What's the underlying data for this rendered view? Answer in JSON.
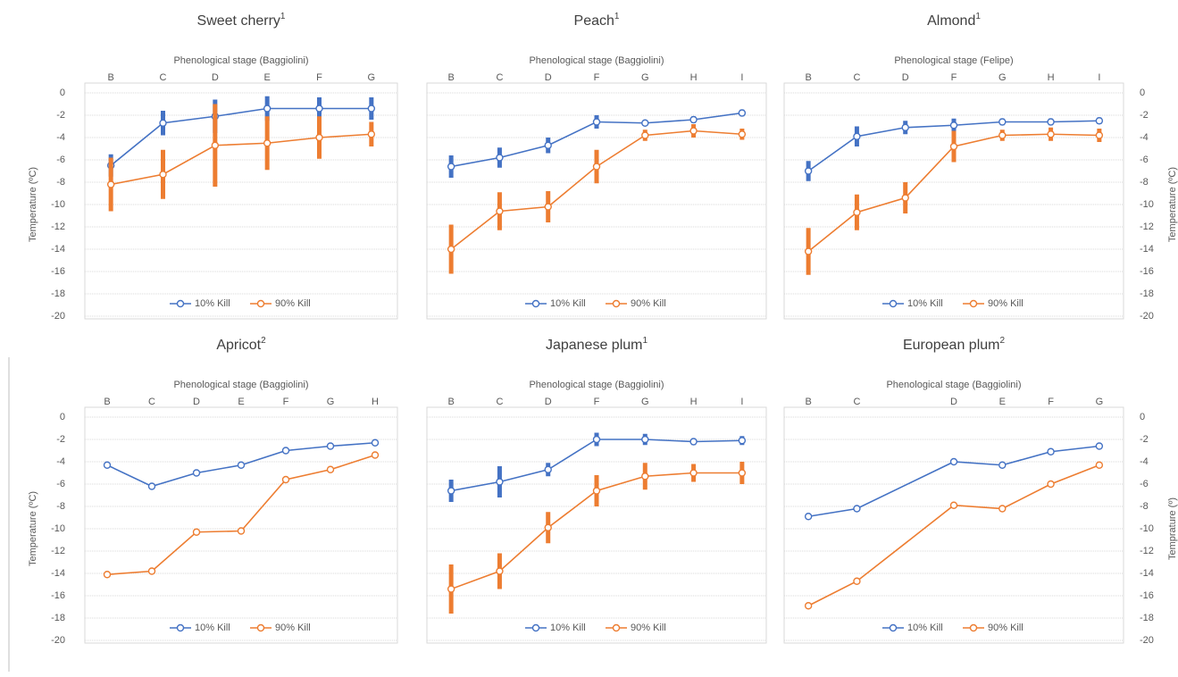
{
  "chart_data": [
    {
      "type": "line",
      "title": "Sweet cherry",
      "title_note": "1",
      "xlabel": "Phenological stage (Baggiolini)",
      "ylabel": "Temperature (ºC)",
      "ytick_side": "left",
      "categories": [
        "B",
        "C",
        "D",
        "E",
        "F",
        "G"
      ],
      "ylim": [
        -20,
        0
      ],
      "yticks": [
        0,
        -2,
        -4,
        -6,
        -8,
        -10,
        -12,
        -14,
        -16,
        -18,
        -20
      ],
      "grid": true,
      "legend": "bottom",
      "series": [
        {
          "name": "10% Kill",
          "color": "#4472c4",
          "values": [
            -6.5,
            -2.7,
            -2.1,
            -1.4,
            -1.4,
            -1.4
          ],
          "errors": [
            1.0,
            1.1,
            1.5,
            1.1,
            1.0,
            1.0
          ]
        },
        {
          "name": "90% Kill",
          "color": "#ed7d31",
          "values": [
            -8.2,
            -7.3,
            -4.7,
            -4.5,
            -4.0,
            -3.7
          ],
          "errors": [
            2.4,
            2.2,
            3.7,
            2.4,
            1.9,
            1.1
          ]
        }
      ]
    },
    {
      "type": "line",
      "title": "Peach",
      "title_note": "1",
      "xlabel": "Phenological stage (Baggiolini)",
      "ytick_side": "none",
      "categories": [
        "B",
        "C",
        "D",
        "F",
        "G",
        "H",
        "I"
      ],
      "ylim": [
        -20,
        0
      ],
      "yticks": [
        0,
        -2,
        -4,
        -6,
        -8,
        -10,
        -12,
        -14,
        -16,
        -18,
        -20
      ],
      "grid": true,
      "legend": "bottom",
      "series": [
        {
          "name": "10% Kill",
          "color": "#4472c4",
          "values": [
            -6.6,
            -5.8,
            -4.7,
            -2.6,
            -2.7,
            -2.4,
            -1.8
          ],
          "errors": [
            1.0,
            0.9,
            0.7,
            0.6,
            0.2,
            0.3,
            0.3
          ]
        },
        {
          "name": "90% Kill",
          "color": "#ed7d31",
          "values": [
            -14.0,
            -10.6,
            -10.2,
            -6.6,
            -3.8,
            -3.4,
            -3.7
          ],
          "errors": [
            2.2,
            1.7,
            1.4,
            1.5,
            0.5,
            0.6,
            0.5
          ]
        }
      ]
    },
    {
      "type": "line",
      "title": "Almond",
      "title_note": "1",
      "xlabel": "Phenological stage (Felipe)",
      "ylabel": "Temperature (ºC)",
      "ytick_side": "right",
      "categories": [
        "B",
        "C",
        "D",
        "F",
        "G",
        "H",
        "I"
      ],
      "ylim": [
        -20,
        0
      ],
      "yticks": [
        0,
        -2,
        -4,
        -6,
        -8,
        -10,
        -12,
        -14,
        -16,
        -18,
        -20
      ],
      "grid": true,
      "legend": "bottom",
      "series": [
        {
          "name": "10% Kill",
          "color": "#4472c4",
          "values": [
            -7.0,
            -3.9,
            -3.1,
            -2.9,
            -2.6,
            -2.6,
            -2.5
          ],
          "errors": [
            0.9,
            0.9,
            0.6,
            0.6,
            0.3,
            0.3,
            0.3
          ]
        },
        {
          "name": "90% Kill",
          "color": "#ed7d31",
          "values": [
            -14.2,
            -10.7,
            -9.4,
            -4.8,
            -3.8,
            -3.7,
            -3.8
          ],
          "errors": [
            2.1,
            1.6,
            1.4,
            1.4,
            0.5,
            0.6,
            0.6
          ]
        }
      ]
    },
    {
      "type": "line",
      "title": "Apricot",
      "title_note": "2",
      "xlabel": "Phenological stage (Baggiolini)",
      "ylabel": "Temperature (ºC)",
      "ytick_side": "left",
      "categories": [
        "B",
        "C",
        "D",
        "E",
        "F",
        "G",
        "H"
      ],
      "ylim": [
        -20,
        0
      ],
      "yticks": [
        0,
        -2,
        -4,
        -6,
        -8,
        -10,
        -12,
        -14,
        -16,
        -18,
        -20
      ],
      "grid": true,
      "legend": "bottom",
      "series": [
        {
          "name": "10% Kill",
          "color": "#4472c4",
          "values": [
            -4.3,
            -6.2,
            -5.0,
            -4.3,
            -3.0,
            -2.6,
            -2.3
          ]
        },
        {
          "name": "90% Kill",
          "color": "#ed7d31",
          "values": [
            -14.1,
            -13.8,
            -10.3,
            -10.2,
            -5.6,
            -4.7,
            -3.4
          ]
        }
      ]
    },
    {
      "type": "line",
      "title": "Japanese plum",
      "title_note": "1",
      "xlabel": "Phenological stage (Baggiolini)",
      "ytick_side": "none",
      "categories": [
        "B",
        "C",
        "D",
        "F",
        "G",
        "H",
        "I"
      ],
      "ylim": [
        -20,
        0
      ],
      "yticks": [
        0,
        -2,
        -4,
        -6,
        -8,
        -10,
        -12,
        -14,
        -16,
        -18,
        -20
      ],
      "grid": true,
      "legend": "bottom",
      "series": [
        {
          "name": "10% Kill",
          "color": "#4472c4",
          "values": [
            -6.6,
            -5.8,
            -4.7,
            -2.0,
            -2.0,
            -2.2,
            -2.1
          ],
          "errors": [
            1.0,
            1.4,
            0.6,
            0.6,
            0.5,
            0.3,
            0.4
          ]
        },
        {
          "name": "90% Kill",
          "color": "#ed7d31",
          "values": [
            -15.4,
            -13.8,
            -9.9,
            -6.6,
            -5.3,
            -5.0,
            -5.0
          ],
          "errors": [
            2.2,
            1.6,
            1.4,
            1.4,
            1.2,
            0.8,
            1.0
          ]
        }
      ]
    },
    {
      "type": "line",
      "title": "European plum",
      "title_note": "2",
      "xlabel": "Phenological stage (Baggiolini)",
      "ylabel": "Temprature (º)",
      "ytick_side": "right",
      "x": [
        1,
        2,
        4,
        5,
        6,
        7
      ],
      "xlim": [
        0.5,
        7.5
      ],
      "xticks": [
        {
          "value": 1,
          "label": "B"
        },
        {
          "value": 2,
          "label": "C"
        },
        {
          "value": 4,
          "label": "D"
        },
        {
          "value": 5,
          "label": "E"
        },
        {
          "value": 6,
          "label": "F"
        },
        {
          "value": 7,
          "label": "G"
        }
      ],
      "ylim": [
        -20,
        0
      ],
      "yticks": [
        0,
        -2,
        -4,
        -6,
        -8,
        -10,
        -12,
        -14,
        -16,
        -18,
        -20
      ],
      "grid": true,
      "legend": "bottom",
      "series": [
        {
          "name": "10% Kill",
          "color": "#4472c4",
          "values": [
            -8.9,
            -8.2,
            -4.0,
            -4.3,
            -3.1,
            -2.6
          ]
        },
        {
          "name": "90% Kill",
          "color": "#ed7d31",
          "values": [
            -16.9,
            -14.7,
            -7.9,
            -8.2,
            -6.0,
            -4.3
          ]
        }
      ]
    }
  ]
}
